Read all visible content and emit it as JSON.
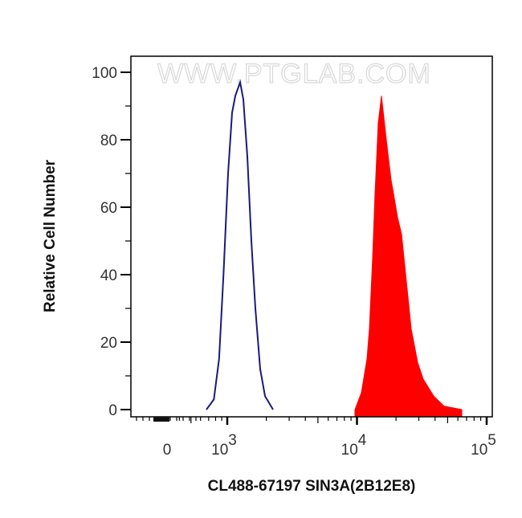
{
  "chart_data": {
    "type": "area",
    "title": "",
    "xlabel": "CL488-67197 SIN3A(2B12E8)",
    "ylabel": "Relative Cell Number",
    "x_scale": "biexponential",
    "ylim": [
      0,
      100
    ],
    "grid": false,
    "watermark": "WWW.PTGLAB.COM",
    "x_ticks": [
      {
        "value": 0,
        "base": "0",
        "exp": ""
      },
      {
        "value": 1000,
        "base": "10",
        "exp": "3"
      },
      {
        "value": 10000,
        "base": "10",
        "exp": "4"
      },
      {
        "value": 100000,
        "base": "10",
        "exp": "5"
      }
    ],
    "y_ticks": [
      "0",
      "20",
      "40",
      "60",
      "80",
      "100"
    ],
    "series": [
      {
        "style": "outline",
        "color": "#1a1a7a",
        "x": [
          671,
          774,
          855,
          931,
          1014,
          1089,
          1153,
          1256,
          1330,
          1428,
          1534,
          1647,
          1795,
          1954,
          2254
        ],
        "y": [
          0,
          3,
          15,
          40,
          70,
          88,
          93,
          97,
          92,
          75,
          50,
          30,
          12,
          4,
          0
        ]
      },
      {
        "style": "filled",
        "color": "#ff0000",
        "x": [
          9650,
          10810,
          11950,
          12470,
          13210,
          13790,
          14590,
          15450,
          16830,
          18330,
          19130,
          20540,
          22070,
          24040,
          26180,
          29350,
          32420,
          39020,
          46960,
          64270
        ],
        "y": [
          0,
          5,
          15,
          24,
          45,
          64,
          85,
          93,
          80,
          68,
          64,
          57,
          52,
          38,
          24,
          14,
          9,
          4,
          1,
          0
        ]
      }
    ]
  }
}
